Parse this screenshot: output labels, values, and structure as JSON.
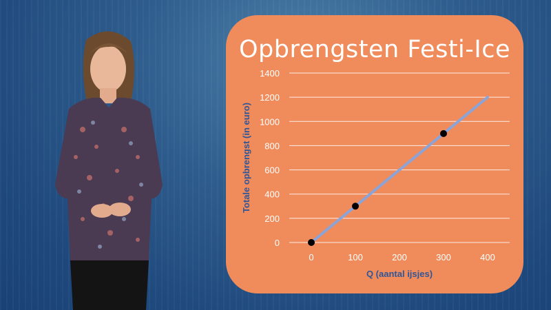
{
  "slide": {
    "title": "Opbrengsten Festi-Ice",
    "presenter_description": "presenter"
  },
  "colors": {
    "card": "#f08c5c",
    "line": "#8aa3d8",
    "grid": "#ffffff",
    "point": "#000000",
    "axis_text": "#ffffff",
    "axis_label": "#2f5597"
  },
  "chart_data": {
    "type": "line",
    "title": "Opbrengsten Festi-Ice",
    "xlabel": "Q (aantal ijsjes)",
    "ylabel": "Totale opbrengst (in euro)",
    "xlim": [
      0,
      400
    ],
    "ylim": [
      0,
      1400
    ],
    "x_ticks": [
      "0",
      "100",
      "200",
      "300",
      "400"
    ],
    "y_ticks": [
      "0",
      "200",
      "400",
      "600",
      "800",
      "1000",
      "1200",
      "1400"
    ],
    "grid": true,
    "series": [
      {
        "x": [
          0,
          400
        ],
        "y": [
          0,
          1200
        ],
        "style": "line"
      },
      {
        "x": [
          0,
          100,
          300
        ],
        "y": [
          0,
          300,
          900
        ],
        "style": "points"
      }
    ]
  }
}
